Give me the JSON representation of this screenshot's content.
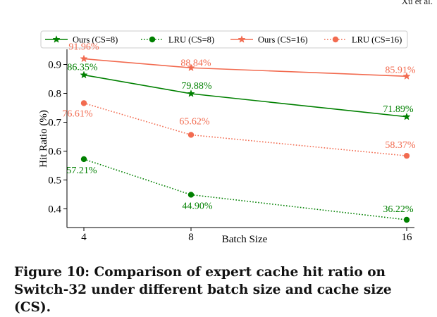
{
  "header": {
    "running_text": "Xu et al."
  },
  "caption": "Figure 10: Comparison of expert cache hit ratio on Switch-32 under different batch size and cache size (CS).",
  "chart_data": {
    "type": "line",
    "title": "",
    "xlabel": "Batch Size",
    "ylabel": "Hit Ratio (%)",
    "x": [
      4,
      8,
      16
    ],
    "x_ticks": [
      "4",
      "8",
      "16"
    ],
    "y_ticks": [
      "0.4",
      "0.5",
      "0.6",
      "0.7",
      "0.8",
      "0.9"
    ],
    "ylim": [
      0.34,
      0.93
    ],
    "grid": false,
    "legend_position": "top",
    "series": [
      {
        "name": "Ours (CS=8)",
        "values": [
          0.8635,
          0.7988,
          0.7189
        ],
        "labels": [
          "86.35%",
          "79.88%",
          "71.89%"
        ],
        "color": "#008000",
        "dash": "solid",
        "marker": "star"
      },
      {
        "name": "LRU (CS=8)",
        "values": [
          0.5721,
          0.449,
          0.3622
        ],
        "labels": [
          "57.21%",
          "44.90%",
          "36.22%"
        ],
        "color": "#008000",
        "dash": "dotted",
        "marker": "circle"
      },
      {
        "name": "Ours (CS=16)",
        "values": [
          0.9196,
          0.8884,
          0.8591
        ],
        "labels": [
          "91.96%",
          "88.84%",
          "85.91%"
        ],
        "color": "#f26b50",
        "dash": "solid",
        "marker": "star"
      },
      {
        "name": "LRU (CS=16)",
        "values": [
          0.7661,
          0.6562,
          0.5837
        ],
        "labels": [
          "76.61%",
          "65.62%",
          "58.37%"
        ],
        "color": "#f26b50",
        "dash": "dotted",
        "marker": "circle"
      }
    ]
  }
}
